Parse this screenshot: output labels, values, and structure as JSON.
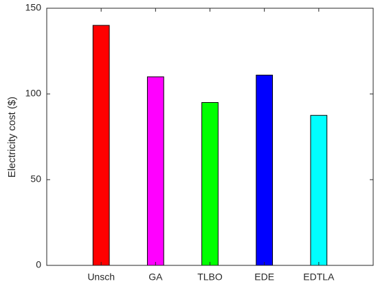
{
  "chart_data": {
    "type": "bar",
    "ylabel": "Electricity cost ($)",
    "categories": [
      "Unsch",
      "GA",
      "TLBO",
      "EDE",
      "EDTLA"
    ],
    "values": [
      140,
      110,
      95,
      111,
      87.5
    ],
    "colors": [
      "#ff0000",
      "#ff00ff",
      "#00ff00",
      "#0000ff",
      "#00ffff"
    ],
    "ylim": [
      0,
      150
    ],
    "yticks": [
      0,
      50,
      100,
      150
    ],
    "grid": false
  }
}
